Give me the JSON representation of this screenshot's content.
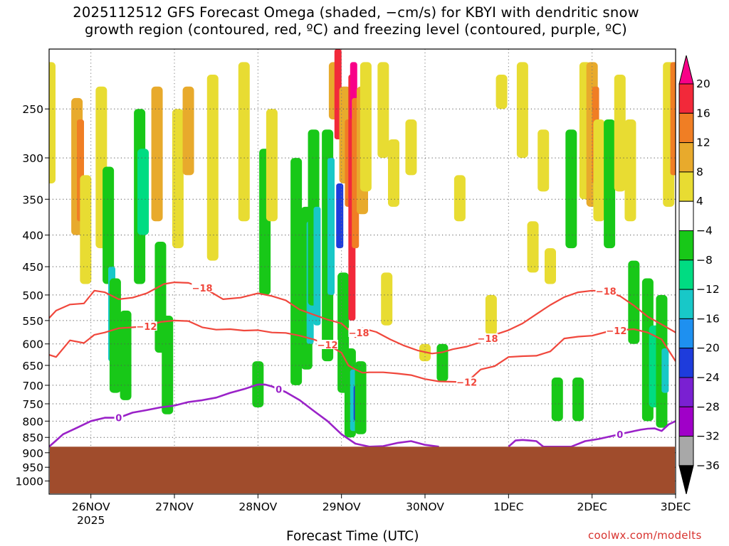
{
  "title_line1": "2025112512 GFS Forecast Omega (shaded, −cm/s) for KBYI with dendritic snow",
  "title_line2": "growth region (contoured, red, ºC) and freezing level (contoured, purple, ºC)",
  "credit": "coolwx.com/modelts",
  "colors": {
    "ground": "#a04c2c",
    "dgz_contour": "#f0473c",
    "freezing_contour": "#9a22c8"
  },
  "chart_data": {
    "type": "heatmap",
    "title": "2025112512 GFS Forecast Omega (shaded, −cm/s) for KBYI with dendritic snow growth region (contoured, red, ºC) and freezing level (contoured, purple, ºC)",
    "xlabel": "Forecast Time (UTC)",
    "ylabel": "",
    "y_scale": "log-pressure (hPa, inverted)",
    "ylim": [
      1050,
      200
    ],
    "xlim": [
      "2025-11-25 12Z",
      "2025-12-03 00Z"
    ],
    "grid": true,
    "y_ticks": [
      {
        "p": 250,
        "label": "250"
      },
      {
        "p": 300,
        "label": "300"
      },
      {
        "p": 350,
        "label": "350"
      },
      {
        "p": 400,
        "label": "400"
      },
      {
        "p": 450,
        "label": "450"
      },
      {
        "p": 500,
        "label": "500"
      },
      {
        "p": 550,
        "label": "550"
      },
      {
        "p": 600,
        "label": "600"
      },
      {
        "p": 650,
        "label": "650"
      },
      {
        "p": 700,
        "label": "700"
      },
      {
        "p": 750,
        "label": "750"
      },
      {
        "p": 800,
        "label": "800"
      },
      {
        "p": 850,
        "label": "850"
      },
      {
        "p": 900,
        "label": "900"
      },
      {
        "p": 950,
        "label": "950"
      },
      {
        "p": 1000,
        "label": "1000"
      }
    ],
    "x_ticks": [
      {
        "t": 12,
        "label": "26NOV",
        "sub": "2025"
      },
      {
        "t": 36,
        "label": "27NOV",
        "sub": ""
      },
      {
        "t": 60,
        "label": "28NOV",
        "sub": ""
      },
      {
        "t": 84,
        "label": "29NOV",
        "sub": ""
      },
      {
        "t": 108,
        "label": "30NOV",
        "sub": ""
      },
      {
        "t": 132,
        "label": "1DEC",
        "sub": ""
      },
      {
        "t": 156,
        "label": "2DEC",
        "sub": ""
      },
      {
        "t": 180,
        "label": "3DEC",
        "sub": ""
      }
    ],
    "x_time_note": "t = forecast hour from 2025-11-25 12Z",
    "colorbar": {
      "labels": [
        "20",
        "16",
        "12",
        "8",
        "4",
        "−4",
        "−8",
        "−12",
        "−16",
        "−20",
        "−24",
        "−28",
        "−32",
        "−36"
      ],
      "colors": [
        "#f80088",
        "#f2293a",
        "#f07e24",
        "#e8aa2c",
        "#e8dc32",
        "#ffffff",
        "#18c818",
        "#00dc82",
        "#18c8c8",
        "#1e90f0",
        "#1e3cdc",
        "#7a20d2",
        "#a000c8",
        "#a8a8a8"
      ]
    },
    "shading": [
      {
        "t": 0.2,
        "p1": 210,
        "p2": 330,
        "value": 6
      },
      {
        "t": 8,
        "p1": 240,
        "p2": 400,
        "value": 10
      },
      {
        "t": 9,
        "p1": 260,
        "p2": 380,
        "value": 14
      },
      {
        "t": 10.5,
        "p1": 320,
        "p2": 480,
        "value": 6
      },
      {
        "t": 15,
        "p1": 230,
        "p2": 420,
        "value": 6
      },
      {
        "t": 17,
        "p1": 310,
        "p2": 480,
        "value": -6
      },
      {
        "t": 18,
        "p1": 450,
        "p2": 640,
        "value": -13
      },
      {
        "t": 19,
        "p1": 470,
        "p2": 720,
        "value": -6
      },
      {
        "t": 22,
        "p1": 530,
        "p2": 740,
        "value": -6
      },
      {
        "t": 26,
        "p1": 250,
        "p2": 480,
        "value": -6
      },
      {
        "t": 27,
        "p1": 290,
        "p2": 400,
        "value": -10
      },
      {
        "t": 31,
        "p1": 230,
        "p2": 380,
        "value": 10
      },
      {
        "t": 32,
        "p1": 410,
        "p2": 620,
        "value": -6
      },
      {
        "t": 34,
        "p1": 540,
        "p2": 780,
        "value": -6
      },
      {
        "t": 37,
        "p1": 250,
        "p2": 420,
        "value": 6
      },
      {
        "t": 40,
        "p1": 230,
        "p2": 320,
        "value": 10
      },
      {
        "t": 47,
        "p1": 220,
        "p2": 440,
        "value": 6
      },
      {
        "t": 56,
        "p1": 210,
        "p2": 380,
        "value": 6
      },
      {
        "t": 60,
        "p1": 640,
        "p2": 760,
        "value": -6
      },
      {
        "t": 62,
        "p1": 290,
        "p2": 500,
        "value": -6
      },
      {
        "t": 64,
        "p1": 250,
        "p2": 380,
        "value": 4
      },
      {
        "t": 71,
        "p1": 300,
        "p2": 700,
        "value": -6
      },
      {
        "t": 74,
        "p1": 360,
        "p2": 660,
        "value": -6
      },
      {
        "t": 75,
        "p1": 380,
        "p2": 600,
        "value": -14
      },
      {
        "t": 76,
        "p1": 270,
        "p2": 520,
        "value": -6
      },
      {
        "t": 77,
        "p1": 360,
        "p2": 560,
        "value": -13
      },
      {
        "t": 80,
        "p1": 270,
        "p2": 640,
        "value": -6
      },
      {
        "t": 81,
        "p1": 300,
        "p2": 500,
        "value": -15
      },
      {
        "t": 82,
        "p1": 210,
        "p2": 260,
        "value": 10
      },
      {
        "t": 83,
        "p1": 200,
        "p2": 280,
        "value": 16
      },
      {
        "t": 83.5,
        "p1": 330,
        "p2": 420,
        "value": -20
      },
      {
        "t": 84.5,
        "p1": 460,
        "p2": 720,
        "value": -6
      },
      {
        "t": 85,
        "p1": 230,
        "p2": 330,
        "value": 10
      },
      {
        "t": 86,
        "p1": 260,
        "p2": 360,
        "value": 14
      },
      {
        "t": 87,
        "p1": 220,
        "p2": 550,
        "value": 18
      },
      {
        "t": 87.5,
        "p1": 210,
        "p2": 260,
        "value": 20
      },
      {
        "t": 88,
        "p1": 240,
        "p2": 420,
        "value": 12
      },
      {
        "t": 90,
        "p1": 230,
        "p2": 370,
        "value": 8
      },
      {
        "t": 91,
        "p1": 210,
        "p2": 340,
        "value": 5
      },
      {
        "t": 86.5,
        "p1": 610,
        "p2": 850,
        "value": -6
      },
      {
        "t": 87.5,
        "p1": 660,
        "p2": 830,
        "value": -13
      },
      {
        "t": 88.5,
        "p1": 700,
        "p2": 800,
        "value": -22
      },
      {
        "t": 89.5,
        "p1": 640,
        "p2": 840,
        "value": -6
      },
      {
        "t": 96,
        "p1": 210,
        "p2": 300,
        "value": 5
      },
      {
        "t": 97,
        "p1": 460,
        "p2": 560,
        "value": 5
      },
      {
        "t": 99,
        "p1": 280,
        "p2": 360,
        "value": 5
      },
      {
        "t": 104,
        "p1": 260,
        "p2": 320,
        "value": 5
      },
      {
        "t": 108,
        "p1": 600,
        "p2": 640,
        "value": 5
      },
      {
        "t": 113,
        "p1": 600,
        "p2": 690,
        "value": -6
      },
      {
        "t": 118,
        "p1": 320,
        "p2": 380,
        "value": 5
      },
      {
        "t": 127,
        "p1": 500,
        "p2": 580,
        "value": 5
      },
      {
        "t": 130,
        "p1": 220,
        "p2": 250,
        "value": 5
      },
      {
        "t": 136,
        "p1": 210,
        "p2": 300,
        "value": 6
      },
      {
        "t": 139,
        "p1": 380,
        "p2": 460,
        "value": 5
      },
      {
        "t": 142,
        "p1": 270,
        "p2": 340,
        "value": 5
      },
      {
        "t": 144,
        "p1": 420,
        "p2": 480,
        "value": 5
      },
      {
        "t": 146,
        "p1": 680,
        "p2": 800,
        "value": -6
      },
      {
        "t": 150,
        "p1": 270,
        "p2": 420,
        "value": -6
      },
      {
        "t": 152,
        "p1": 680,
        "p2": 800,
        "value": -6
      },
      {
        "t": 154,
        "p1": 210,
        "p2": 350,
        "value": 6
      },
      {
        "t": 156,
        "p1": 210,
        "p2": 360,
        "value": 11
      },
      {
        "t": 157,
        "p1": 230,
        "p2": 330,
        "value": 14
      },
      {
        "t": 158,
        "p1": 260,
        "p2": 380,
        "value": 6
      },
      {
        "t": 161,
        "p1": 260,
        "p2": 420,
        "value": -6
      },
      {
        "t": 164,
        "p1": 220,
        "p2": 340,
        "value": 5
      },
      {
        "t": 167,
        "p1": 260,
        "p2": 380,
        "value": 6
      },
      {
        "t": 168,
        "p1": 440,
        "p2": 600,
        "value": -6
      },
      {
        "t": 172,
        "p1": 470,
        "p2": 800,
        "value": -6
      },
      {
        "t": 174,
        "p1": 560,
        "p2": 760,
        "value": -10
      },
      {
        "t": 176,
        "p1": 500,
        "p2": 820,
        "value": -6
      },
      {
        "t": 177,
        "p1": 610,
        "p2": 720,
        "value": -13
      },
      {
        "t": 178,
        "p1": 210,
        "p2": 360,
        "value": 6
      },
      {
        "t": 179.5,
        "p1": 210,
        "p2": 320,
        "value": 12
      }
    ],
    "series": [
      {
        "name": "−18",
        "x": [
          0,
          2,
          6,
          10,
          13,
          16,
          20,
          24,
          28,
          33,
          36,
          40,
          45,
          50,
          55,
          60,
          64,
          68,
          72,
          76,
          80,
          84,
          86,
          88,
          90,
          94,
          98,
          102,
          106,
          110,
          113,
          116,
          120,
          124,
          128,
          132,
          136,
          140,
          144,
          148,
          152,
          156,
          160,
          164,
          168,
          172,
          176,
          180
        ],
        "y": [
          545,
          530,
          518,
          516,
          492,
          495,
          508,
          505,
          497,
          480,
          477,
          478,
          489,
          508,
          505,
          497,
          502,
          510,
          528,
          538,
          548,
          556,
          569,
          585,
          566,
          574,
          590,
          604,
          615,
          622,
          619,
          612,
          606,
          596,
          580,
          570,
          556,
          537,
          519,
          504,
          495,
          492,
          493,
          502,
          520,
          542,
          558,
          575
        ]
      },
      {
        "name": "−12",
        "x": [
          0,
          2,
          6,
          10,
          13,
          16,
          20,
          24,
          28,
          32,
          36,
          40,
          44,
          48,
          52,
          56,
          60,
          64,
          68,
          72,
          76,
          80,
          84,
          86,
          88,
          90,
          92,
          96,
          100,
          104,
          108,
          112,
          116,
          120,
          124,
          128,
          132,
          136,
          140,
          144,
          148,
          152,
          156,
          160,
          164,
          168,
          172,
          176,
          180
        ],
        "y": [
          625,
          630,
          592,
          598,
          580,
          575,
          566,
          564,
          562,
          553,
          550,
          551,
          564,
          569,
          568,
          571,
          570,
          575,
          576,
          582,
          590,
          602,
          620,
          650,
          660,
          668,
          667,
          667,
          670,
          674,
          684,
          690,
          691,
          692,
          660,
          652,
          630,
          628,
          627,
          617,
          588,
          584,
          582,
          574,
          570,
          568,
          575,
          590,
          640
        ]
      },
      {
        "name": "0",
        "x": [
          0,
          2,
          4,
          8,
          12,
          16,
          20,
          24,
          28,
          32,
          36,
          40,
          44,
          48,
          52,
          56,
          60,
          62,
          64,
          68,
          72,
          76,
          80,
          84,
          88,
          92,
          96,
          100,
          104,
          108,
          112
        ],
        "y": [
          880,
          860,
          840,
          820,
          800,
          790,
          790,
          775,
          768,
          760,
          755,
          745,
          740,
          733,
          720,
          710,
          698,
          698,
          703,
          718,
          740,
          770,
          800,
          840,
          870,
          880,
          878,
          868,
          862,
          874,
          880
        ]
      },
      {
        "name": "0",
        "x": [
          132,
          134,
          136,
          138,
          140,
          142,
          150,
          154,
          158,
          162,
          166,
          170,
          172,
          174,
          176,
          178,
          180
        ],
        "y": [
          880,
          860,
          858,
          860,
          862,
          880,
          880,
          862,
          855,
          845,
          835,
          826,
          823,
          822,
          830,
          810,
          800
        ]
      }
    ],
    "contour_labels": [
      {
        "series": 0,
        "t": 44,
        "text": "−18"
      },
      {
        "series": 0,
        "t": 89,
        "text": "−18"
      },
      {
        "series": 0,
        "t": 126,
        "text": "−18"
      },
      {
        "series": 0,
        "t": 160,
        "text": "−18"
      },
      {
        "series": 1,
        "t": 28,
        "text": "−12"
      },
      {
        "series": 1,
        "t": 80,
        "text": "−12"
      },
      {
        "series": 1,
        "t": 120,
        "text": "−12"
      },
      {
        "series": 1,
        "t": 163,
        "text": "−12"
      },
      {
        "series": 2,
        "t": 20,
        "text": "0"
      },
      {
        "series": 2,
        "t": 66,
        "text": "0"
      },
      {
        "series": 3,
        "t": 164,
        "text": "0"
      }
    ],
    "ground": {
      "p_top": 880
    }
  }
}
